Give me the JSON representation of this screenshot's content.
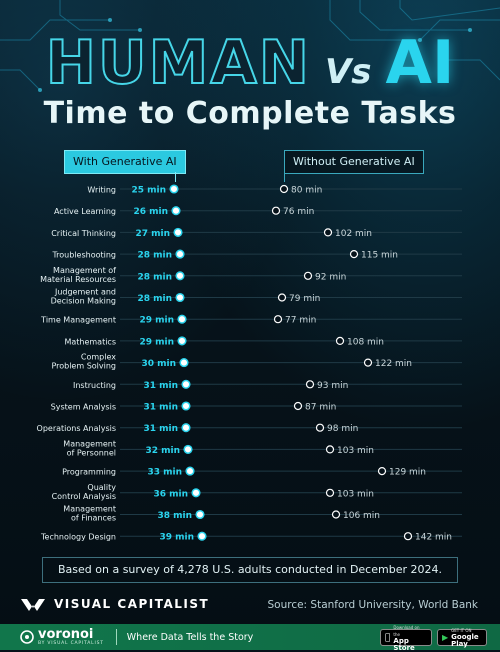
{
  "header": {
    "title_left": "HUMAN",
    "title_vs": "Vs",
    "title_right": "AI",
    "subtitle": "Time to Complete Tasks"
  },
  "legend": {
    "with_label": "With Generative AI",
    "without_label": "Without Generative AI"
  },
  "chart_data": {
    "type": "dumbbell",
    "unit": "min",
    "x_range": [
      0,
      160
    ],
    "series": [
      {
        "name": "With Generative AI",
        "color": "#2ad4ee"
      },
      {
        "name": "Without Generative AI",
        "color": "#ffffff"
      }
    ],
    "rows": [
      {
        "task": [
          "Writing"
        ],
        "with": 25,
        "without": 80
      },
      {
        "task": [
          "Active Learning"
        ],
        "with": 26,
        "without": 76
      },
      {
        "task": [
          "Critical Thinking"
        ],
        "with": 27,
        "without": 102
      },
      {
        "task": [
          "Troubleshooting"
        ],
        "with": 28,
        "without": 115
      },
      {
        "task": [
          "Management of",
          "Material Resources"
        ],
        "with": 28,
        "without": 92
      },
      {
        "task": [
          "Judgement and",
          "Decision Making"
        ],
        "with": 28,
        "without": 79
      },
      {
        "task": [
          "Time Management"
        ],
        "with": 29,
        "without": 77
      },
      {
        "task": [
          "Mathematics"
        ],
        "with": 29,
        "without": 108
      },
      {
        "task": [
          "Complex",
          "Problem Solving"
        ],
        "with": 30,
        "without": 122
      },
      {
        "task": [
          "Instructing"
        ],
        "with": 31,
        "without": 93
      },
      {
        "task": [
          "System Analysis"
        ],
        "with": 31,
        "without": 87
      },
      {
        "task": [
          "Operations Analysis"
        ],
        "with": 31,
        "without": 98
      },
      {
        "task": [
          "Management",
          "of Personnel"
        ],
        "with": 32,
        "without": 103
      },
      {
        "task": [
          "Programming"
        ],
        "with": 33,
        "without": 129
      },
      {
        "task": [
          "Quality",
          "Control Analysis"
        ],
        "with": 36,
        "without": 103
      },
      {
        "task": [
          "Management",
          "of Finances"
        ],
        "with": 38,
        "without": 106
      },
      {
        "task": [
          "Technology Design"
        ],
        "with": 39,
        "without": 142
      }
    ]
  },
  "footer": {
    "note": "Based on a survey of 4,278 U.S. adults conducted in December 2024.",
    "brand": "VISUAL CAPITALIST",
    "source": "Source:  Stanford University, World Bank",
    "voronoi_name": "voronoi",
    "voronoi_sub": "BY VISUAL CAPITALIST",
    "tagline": "Where Data Tells the Story",
    "app_store_small": "Download on the",
    "app_store_big": "App Store",
    "play_small": "GET IT ON",
    "play_big": "Google Play"
  },
  "colors": {
    "accent": "#2ad4ee",
    "background": "#06121a",
    "voronoi_green": "#11764b"
  }
}
